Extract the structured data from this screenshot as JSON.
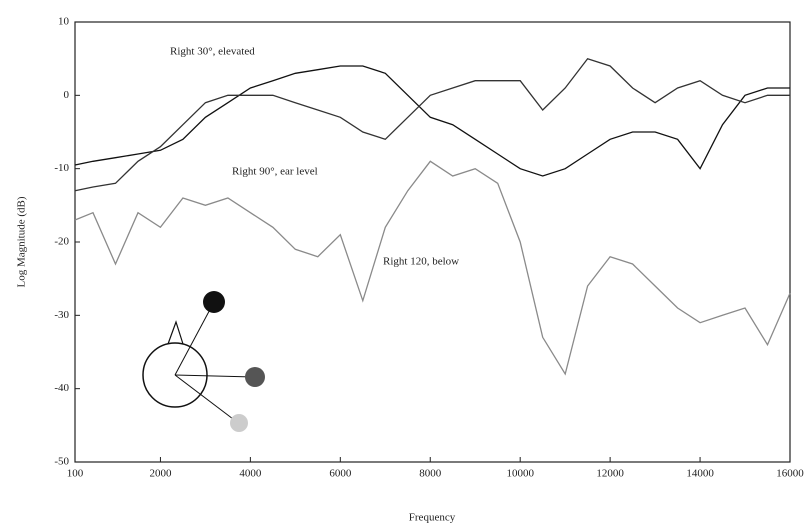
{
  "chart_data": {
    "type": "line",
    "x_label": "Frequency",
    "y_label": "Log Magnitude (dB)",
    "x": [
      100,
      500,
      1000,
      1500,
      2000,
      2500,
      3000,
      3500,
      4000,
      4500,
      5000,
      5500,
      6000,
      6500,
      7000,
      7500,
      8000,
      8500,
      9000,
      9500,
      10000,
      10500,
      11000,
      11500,
      12000,
      12500,
      13000,
      13500,
      14000,
      14500,
      15000,
      15500,
      16000
    ],
    "series": [
      {
        "name": "Right 30°, elevated",
        "color": "#111111",
        "values": [
          -9.5,
          -9,
          -8.5,
          -8,
          -7.5,
          -6,
          -3,
          -1,
          1,
          2,
          3,
          3.5,
          4,
          4,
          3,
          0,
          -3,
          -4,
          -6,
          -8,
          -10,
          -11,
          -10,
          -8,
          -6,
          -5,
          -5,
          -6,
          -10,
          -4,
          0,
          1,
          1
        ]
      },
      {
        "name": "Right 90°, ear level",
        "color": "#333333",
        "values": [
          -13,
          -12.5,
          -12,
          -9,
          -7,
          -4,
          -1,
          0,
          0,
          0,
          -1,
          -2,
          -3,
          -5,
          -6,
          -3,
          0,
          1,
          2,
          2,
          2,
          -2,
          1,
          5,
          4,
          1,
          -1,
          1,
          2,
          0,
          -1,
          0,
          0
        ]
      },
      {
        "name": "Right 120, below",
        "color": "#8a8a8a",
        "values": [
          -17,
          -16,
          -23,
          -16,
          -18,
          -14,
          -15,
          -14,
          -16,
          -18,
          -21,
          -22,
          -19,
          -28,
          -18,
          -13,
          -9,
          -11,
          -10,
          -12,
          -20,
          -33,
          -38,
          -26,
          -22,
          -23,
          -26,
          -29,
          -31,
          -30,
          -29,
          -34,
          -27
        ]
      }
    ],
    "xlim": [
      100,
      16000
    ],
    "xticks": [
      100,
      2000,
      4000,
      6000,
      8000,
      10000,
      12000,
      14000,
      16000
    ],
    "ylim": [
      -50,
      10
    ],
    "yticks": [
      10,
      0,
      -10,
      -20,
      -30,
      -40,
      -50
    ]
  }
}
